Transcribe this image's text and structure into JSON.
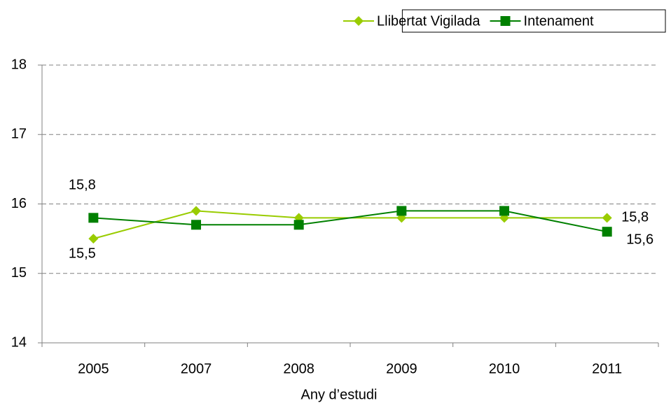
{
  "chart_data": {
    "type": "line",
    "x_label": "Any d’estudi",
    "categories": [
      "2005",
      "2007",
      "2008",
      "2009",
      "2010",
      "2011"
    ],
    "series": [
      {
        "name": "Llibertat Vigilada",
        "color": "#99cc00",
        "marker": "diamond",
        "values": [
          15.5,
          15.9,
          15.8,
          15.8,
          15.8,
          15.8
        ],
        "value_labels": [
          "15,5",
          null,
          null,
          null,
          null,
          "15,8"
        ]
      },
      {
        "name": "Intenament",
        "color": "#008000",
        "marker": "square",
        "values": [
          15.8,
          15.7,
          15.7,
          15.9,
          15.9,
          15.6
        ],
        "value_labels": [
          "15,8",
          null,
          null,
          null,
          null,
          "15,6"
        ]
      }
    ],
    "ylim": [
      14,
      18
    ],
    "yticks": [
      14,
      15,
      16,
      17,
      18
    ],
    "grid": true,
    "legend": "top-right"
  }
}
